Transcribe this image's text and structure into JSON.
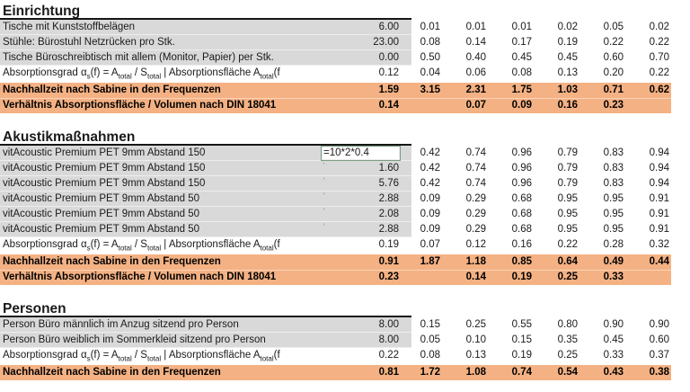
{
  "colors": {
    "summary_bg": "#F4B183",
    "input_bg": "#D9D9D9",
    "edit_cell_border": "#7B9B85",
    "text": "#1A1A1A"
  },
  "shared": {
    "row_marker_glyph": "’",
    "absorption_label_parts": [
      {
        "t": "Absorptionsgrad α",
        "sub": false
      },
      {
        "t": "s",
        "sub": true
      },
      {
        "t": "(f) = A",
        "sub": false
      },
      {
        "t": "total",
        "sub": true
      },
      {
        "t": " / S",
        "sub": false
      },
      {
        "t": "total",
        "sub": true
      },
      {
        "t": " | Absorptionsfläche A",
        "sub": false
      },
      {
        "t": "total",
        "sub": true
      },
      {
        "t": "(f",
        "sub": false
      }
    ]
  },
  "sections": [
    {
      "title": "Einrichtung",
      "rows": [
        {
          "type": "input",
          "label": "Tische mit Kunststoffbelägen",
          "values": [
            "6.00",
            "0.01",
            "0.01",
            "0.01",
            "0.02",
            "0.05",
            "0.02"
          ]
        },
        {
          "type": "input",
          "label": "Stühle: Bürostuhl Netzrücken pro Stk.",
          "values": [
            "23.00",
            "0.08",
            "0.14",
            "0.17",
            "0.19",
            "0.22",
            "0.22"
          ]
        },
        {
          "type": "input",
          "label": "Tische Büroschreibtisch mit allem (Monitor, Papier) per Stk.",
          "values": [
            "0.00",
            "0.50",
            "0.40",
            "0.45",
            "0.45",
            "0.60",
            "0.70"
          ]
        },
        {
          "type": "calc",
          "absorption_label": true,
          "values": [
            "0.12",
            "0.04",
            "0.06",
            "0.08",
            "0.13",
            "0.20",
            "0.22"
          ]
        },
        {
          "type": "summary",
          "label": "Nachhallzeit nach Sabine in den Frequenzen",
          "values": [
            "1.59",
            "3.15",
            "2.31",
            "1.75",
            "1.03",
            "0.71",
            "0.62"
          ]
        },
        {
          "type": "summary",
          "label": "Verhältnis Absorptionsfläche / Volumen nach DIN 18041",
          "values": [
            "0.14",
            "",
            "0.07",
            "0.09",
            "0.16",
            "0.23",
            ""
          ]
        }
      ]
    },
    {
      "title": "Akustikmaßnahmen",
      "rows": [
        {
          "type": "input",
          "edit": true,
          "label": "vitAcoustic Premium PET 9mm Abstand 150",
          "values": [
            "=10*2*0.4",
            "0.42",
            "0.74",
            "0.96",
            "0.79",
            "0.83",
            "0.94"
          ]
        },
        {
          "type": "input",
          "marker": true,
          "label": "vitAcoustic Premium PET 9mm Abstand 150",
          "values": [
            "1.60",
            "0.42",
            "0.74",
            "0.96",
            "0.79",
            "0.83",
            "0.94"
          ]
        },
        {
          "type": "input",
          "marker": true,
          "label": "vitAcoustic Premium PET 9mm Abstand 150",
          "values": [
            "5.76",
            "0.42",
            "0.74",
            "0.96",
            "0.79",
            "0.83",
            "0.94"
          ]
        },
        {
          "type": "input",
          "marker": true,
          "label": "vitAcoustic Premium PET 9mm Abstand 50",
          "values": [
            "2.88",
            "0.09",
            "0.29",
            "0.68",
            "0.95",
            "0.95",
            "0.91"
          ]
        },
        {
          "type": "input",
          "marker": true,
          "label": "vitAcoustic Premium PET 9mm Abstand 50",
          "values": [
            "2.08",
            "0.09",
            "0.29",
            "0.68",
            "0.95",
            "0.95",
            "0.91"
          ]
        },
        {
          "type": "input",
          "marker": true,
          "label": "vitAcoustic Premium PET 9mm Abstand 50",
          "values": [
            "2.88",
            "0.09",
            "0.29",
            "0.68",
            "0.95",
            "0.95",
            "0.91"
          ]
        },
        {
          "type": "calc",
          "absorption_label": true,
          "values": [
            "0.19",
            "0.07",
            "0.12",
            "0.16",
            "0.22",
            "0.28",
            "0.32"
          ]
        },
        {
          "type": "summary",
          "label": "Nachhallzeit nach Sabine in den Frequenzen",
          "values": [
            "0.91",
            "1.87",
            "1.18",
            "0.85",
            "0.64",
            "0.49",
            "0.44"
          ]
        },
        {
          "type": "summary",
          "label": "Verhältnis Absorptionsfläche / Volumen nach DIN 18041",
          "values": [
            "0.23",
            "",
            "0.14",
            "0.19",
            "0.25",
            "0.33",
            ""
          ]
        }
      ]
    },
    {
      "title": "Personen",
      "rows": [
        {
          "type": "input",
          "label": "Person Büro männlich im Anzug sitzend pro Person",
          "values": [
            "8.00",
            "0.15",
            "0.25",
            "0.55",
            "0.80",
            "0.90",
            "0.90"
          ]
        },
        {
          "type": "input",
          "label": "Person Büro weiblich im Sommerkleid sitzend pro Person",
          "values": [
            "8.00",
            "0.05",
            "0.10",
            "0.15",
            "0.35",
            "0.45",
            "0.60"
          ]
        },
        {
          "type": "calc",
          "absorption_label": true,
          "values": [
            "0.22",
            "0.08",
            "0.13",
            "0.19",
            "0.25",
            "0.33",
            "0.37"
          ]
        },
        {
          "type": "summary",
          "label": "Nachhallzeit nach Sabine in den Frequenzen",
          "values": [
            "0.81",
            "1.72",
            "1.08",
            "0.74",
            "0.54",
            "0.43",
            "0.38"
          ]
        }
      ]
    }
  ]
}
